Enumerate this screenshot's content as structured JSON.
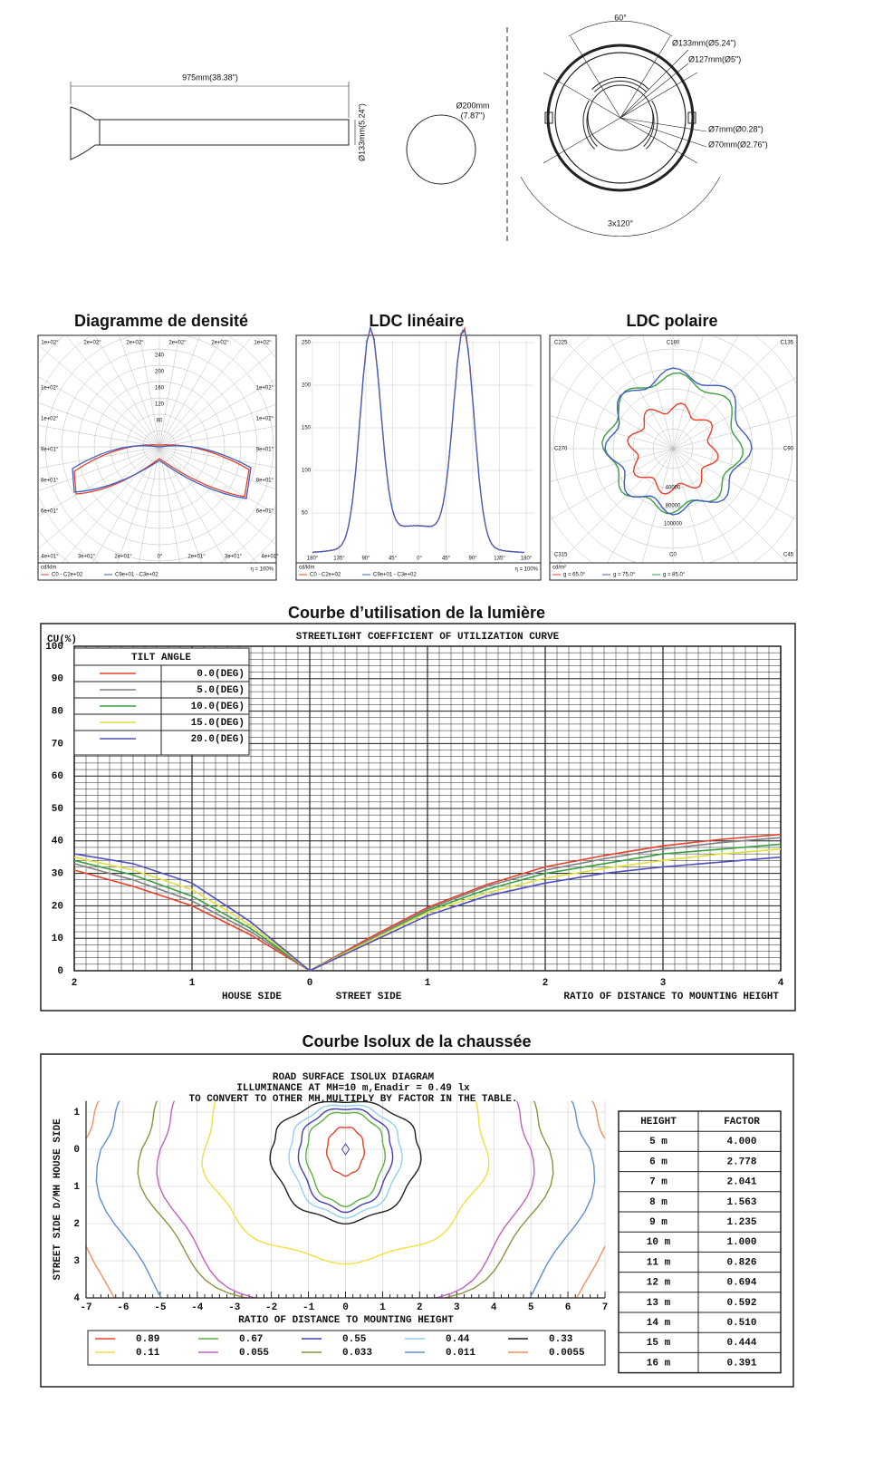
{
  "dimensions": {
    "length": "975mm(38.38\")",
    "pole_diameter": "Ø133mm(5.24\")",
    "top_diameter": [
      "Ø200mm",
      "(7.87\")"
    ],
    "angle_top": "60°",
    "angle_bottom": "3x120°",
    "outer": "Ø133mm(Ø5.24\")",
    "inner": "Ø127mm(Ø5\")",
    "hole": "Ø7mm(Ø0.28\")",
    "center": "Ø70mm(Ø2.76\")"
  },
  "density": {
    "title": "Diagramme de densité",
    "rings": [
      "240",
      "200",
      "160",
      "120",
      "80"
    ],
    "top_labels": [
      "1e+02°",
      "2e+02°",
      "2e+02°",
      "2e+02°",
      "2e+02°",
      "1e+02°"
    ],
    "side_labels": [
      "1e+02°",
      "1e+02°",
      "9e+01°",
      "8e+01°",
      "6e+01°"
    ],
    "bottom_labels": [
      "4e+01°",
      "3e+01°",
      "2e+01°",
      "0°",
      "2e+01°",
      "3e+01°",
      "4e+01°"
    ],
    "unit": "cd/klm",
    "efficiency": "η = 100%",
    "legend": [
      "C0 - C2e+02",
      "C9e+01 - C3e+02"
    ]
  },
  "linear": {
    "title": "LDC linéaire",
    "yticks": [
      "250",
      "200",
      "150",
      "100",
      "50"
    ],
    "xticks": [
      "180°",
      "135°",
      "90°",
      "45°",
      "0°",
      "45°",
      "90°",
      "135°",
      "180°"
    ],
    "unit": "cd/klm",
    "efficiency": "η = 100%",
    "legend": [
      "C0 - C2e+02",
      "C9e+01 - C3e+02"
    ]
  },
  "polar": {
    "title": "LDC polaire",
    "corners": [
      "C225",
      "C180",
      "C135",
      "C270",
      "C90",
      "C315",
      "C0",
      "C45"
    ],
    "rings": [
      "40000",
      "80000",
      "100000"
    ],
    "unit": "cd/m²",
    "legend": [
      "g = 65.0°",
      "g = 75.0°",
      "g = 85.0°"
    ]
  },
  "cu": {
    "section_title": "Courbe d’utilisation de la lumière",
    "title": "STREETLIGHT COEFFICIENT OF UTILIZATION CURVE",
    "ylabel": "CU(%)",
    "legend_title": "TILT ANGLE",
    "house": "HOUSE SIDE",
    "street": "STREET SIDE",
    "xlabel": "RATIO OF DISTANCE TO MOUNTING HEIGHT",
    "xlim": [
      -2,
      4
    ],
    "ylim": [
      0,
      100
    ],
    "xticks": [
      {
        "value": -2,
        "label": "2"
      },
      {
        "value": -1,
        "label": "1"
      },
      0,
      1,
      2,
      3,
      4
    ],
    "yticks": [
      0,
      10,
      20,
      30,
      40,
      50,
      60,
      70,
      80,
      90,
      100
    ],
    "x": [
      -2,
      -1.5,
      -1,
      -0.5,
      0,
      0.5,
      1,
      1.5,
      2,
      2.5,
      3,
      3.5,
      4
    ],
    "series": [
      {
        "name": "0.0(DEG)",
        "color": "#e8402a",
        "values": [
          31,
          26,
          20,
          11,
          0,
          10,
          19.5,
          26.5,
          32,
          35.5,
          38.5,
          40.5,
          42
        ]
      },
      {
        "name": "5.0(DEG)",
        "color": "#808080",
        "values": [
          33,
          28,
          21.5,
          12,
          0,
          9.5,
          19,
          26,
          31,
          34.5,
          37.5,
          39.5,
          41
        ]
      },
      {
        "name": "10.0(DEG)",
        "color": "#3aa040",
        "values": [
          34,
          29.5,
          23,
          13,
          0,
          9,
          18.5,
          25,
          30,
          33,
          36,
          37.5,
          39
        ]
      },
      {
        "name": "15.0(DEG)",
        "color": "#e0e040",
        "values": [
          35,
          31,
          25,
          14,
          0,
          9,
          18,
          24,
          28.5,
          31.5,
          34,
          36,
          37.5
        ]
      },
      {
        "name": "20.0(DEG)",
        "color": "#5050c0",
        "values": [
          36,
          33,
          27,
          15,
          0,
          8.5,
          17,
          23,
          27,
          30,
          32,
          33.5,
          35
        ]
      }
    ]
  },
  "isolux": {
    "section_title": "Courbe Isolux de la chaussée",
    "title": [
      "ROAD SURFACE ISOLUX DIAGRAM",
      "ILLUMINANCE AT MH=10 m,Enadir  = 0.49 lx",
      "TO CONVERT TO OTHER MH,MULTIPLY BY FACTOR IN THE TABLE."
    ],
    "ylabel": "STREET SIDE  D/MH  HOUSE SIDE",
    "xlabel": "RATIO OF DISTANCE TO MOUNTING HEIGHT",
    "xlim": [
      -7,
      7
    ],
    "ylim": [
      -1.3,
      4
    ],
    "xticks": [
      -7,
      -6,
      -5,
      -4,
      -3,
      -2,
      -1,
      0,
      1,
      2,
      3,
      4,
      5,
      6,
      7
    ],
    "yticks": [
      {
        "value": -1,
        "label": "1"
      },
      0,
      1,
      2,
      3,
      4
    ],
    "contours": [
      {
        "name": "0.89",
        "color": "#e8402a",
        "extent": {
          "x": 0.5,
          "top": -0.6,
          "bottom": 0.7
        }
      },
      {
        "name": "0.67",
        "color": "#5cb040",
        "extent": {
          "x": 1.05,
          "top": -1.0,
          "bottom": 1.5
        }
      },
      {
        "name": "0.55",
        "color": "#4040b0",
        "extent": {
          "x": 1.25,
          "top": -1.1,
          "bottom": 1.65
        }
      },
      {
        "name": "0.44",
        "color": "#90d0f0",
        "extent": {
          "x": 1.5,
          "top": -1.2,
          "bottom": 1.8
        }
      },
      {
        "name": "0.33",
        "color": "#202020",
        "extent": {
          "x": 2.0,
          "top": -1.3,
          "bottom": 1.95
        }
      },
      {
        "name": "0.11",
        "color": "#f0e040",
        "extent": {
          "x": 3.8,
          "top": -3,
          "bottom": 3.0
        }
      },
      {
        "name": "0.055",
        "color": "#c060c0",
        "extent": {
          "x": 5.0,
          "top": -3,
          "bottom": 4.6
        }
      },
      {
        "name": "0.033",
        "color": "#909040",
        "extent": {
          "x": 5.5,
          "top": -3,
          "bottom": 4.6
        }
      },
      {
        "name": "0.011",
        "color": "#6090d0",
        "extent": {
          "x": 6.6,
          "top": -3,
          "bottom": 6
        }
      },
      {
        "name": "0.0055",
        "color": "#f09060",
        "extent": {
          "x": 7.2,
          "top": -3,
          "bottom": 9
        }
      }
    ],
    "table": {
      "header": [
        "HEIGHT",
        "FACTOR"
      ],
      "rows": [
        [
          "5 m",
          "4.000"
        ],
        [
          "6 m",
          "2.778"
        ],
        [
          "7 m",
          "2.041"
        ],
        [
          "8 m",
          "1.563"
        ],
        [
          "9 m",
          "1.235"
        ],
        [
          "10 m",
          "1.000"
        ],
        [
          "11 m",
          "0.826"
        ],
        [
          "12 m",
          "0.694"
        ],
        [
          "13 m",
          "0.592"
        ],
        [
          "14 m",
          "0.510"
        ],
        [
          "15 m",
          "0.444"
        ],
        [
          "16 m",
          "0.391"
        ]
      ]
    }
  }
}
